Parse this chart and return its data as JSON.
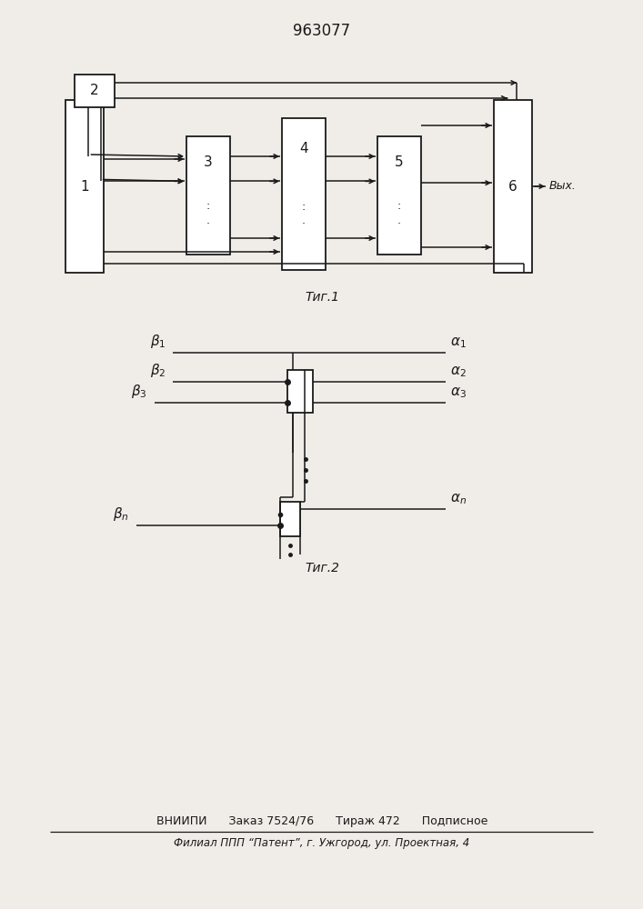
{
  "title": "963077",
  "fig1_caption": "Τиг.1",
  "fig2_caption": "Τиг.2",
  "footer_line1": "ВНИИПИ      Заказ 7524/76      Тираж 472      Подписное",
  "footer_line2": "Филиал ППП “Патент”, г. Ужгород, ул. Проектная, 4",
  "bg_color": "#f0ede8",
  "line_color": "#1a1a1a",
  "label1": "1",
  "label2": "2",
  "label3": "3",
  "label4": "4",
  "label5": "5",
  "label6": "6",
  "vyx_label": "Вых.",
  "b1": "ß₁",
  "b2": "ß₂",
  "b3": "ß₃",
  "bn": "ßₙ",
  "a1": "α₁",
  "a2": "α₂",
  "a3": "α₃",
  "an": "αₙ"
}
